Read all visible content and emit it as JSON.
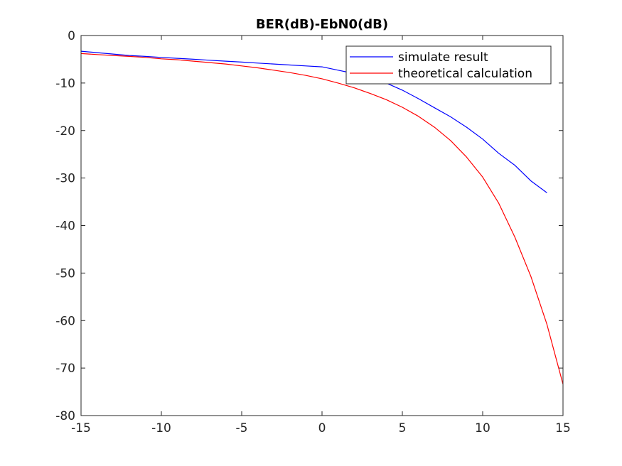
{
  "chart_data": {
    "type": "line",
    "title": "BER(dB)-EbN0(dB)",
    "xlabel": "",
    "ylabel": "",
    "xlim": [
      -15,
      15
    ],
    "ylim": [
      -80,
      0
    ],
    "xticks": [
      -15,
      -10,
      -5,
      0,
      5,
      10,
      15
    ],
    "yticks": [
      0,
      -10,
      -20,
      -30,
      -40,
      -50,
      -60,
      -70,
      -80
    ],
    "grid": false,
    "legend_position": "top-right",
    "series": [
      {
        "name": "simulate result",
        "color": "#0000ff",
        "x": [
          -15,
          -14,
          -13,
          -12,
          -11,
          -10,
          -9,
          -8,
          -7,
          -6,
          -5,
          -4,
          -3,
          -2,
          -1,
          0,
          1,
          2,
          3,
          4,
          5,
          6,
          7,
          8,
          9,
          10,
          11,
          12,
          13,
          14
        ],
        "y": [
          -3.3,
          -3.6,
          -3.9,
          -4.2,
          -4.4,
          -4.6,
          -4.8,
          -5.0,
          -5.2,
          -5.4,
          -5.6,
          -5.8,
          -6.0,
          -6.2,
          -6.4,
          -6.6,
          -7.3,
          -8.0,
          -8.7,
          -10.0,
          -11.5,
          -13.3,
          -15.2,
          -17.1,
          -19.3,
          -21.8,
          -24.8,
          -27.3,
          -30.6,
          -33.1
        ]
      },
      {
        "name": "theoretical calculation",
        "color": "#ff0000",
        "x": [
          -15,
          -14,
          -13,
          -12,
          -11,
          -10,
          -9,
          -8,
          -7,
          -6,
          -5,
          -4,
          -3,
          -2,
          -1,
          0,
          1,
          2,
          3,
          4,
          5,
          6,
          7,
          8,
          9,
          10,
          11,
          12,
          13,
          14,
          15
        ],
        "y": [
          -3.8,
          -4.0,
          -4.2,
          -4.4,
          -4.6,
          -4.9,
          -5.1,
          -5.4,
          -5.7,
          -6.0,
          -6.4,
          -6.8,
          -7.3,
          -7.8,
          -8.4,
          -9.1,
          -10.0,
          -11.0,
          -12.2,
          -13.5,
          -15.1,
          -17.0,
          -19.3,
          -22.1,
          -25.6,
          -29.8,
          -35.3,
          -42.4,
          -50.7,
          -60.8,
          -73.4
        ]
      }
    ]
  }
}
